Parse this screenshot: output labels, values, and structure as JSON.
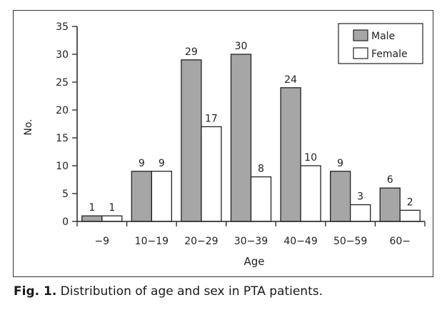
{
  "caption": {
    "label": "Fig. 1.",
    "text": " Distribution of age and sex in PTA patients."
  },
  "colors": {
    "male": "#a6a6a6",
    "female": "#ffffff",
    "stroke": "#222222"
  },
  "chart_data": {
    "type": "bar",
    "xlabel": "Age",
    "ylabel": "No.",
    "ylim": [
      0,
      35
    ],
    "yticks": [
      0,
      5,
      10,
      15,
      20,
      25,
      30,
      35
    ],
    "categories": [
      "−9",
      "10−19",
      "20−29",
      "30−39",
      "40−49",
      "50−59",
      "60−"
    ],
    "series": [
      {
        "name": "Male",
        "values": [
          1,
          9,
          29,
          30,
          24,
          9,
          6
        ]
      },
      {
        "name": "Female",
        "values": [
          1,
          9,
          17,
          8,
          10,
          3,
          2
        ]
      }
    ],
    "legend": "top-right",
    "grid": false
  }
}
